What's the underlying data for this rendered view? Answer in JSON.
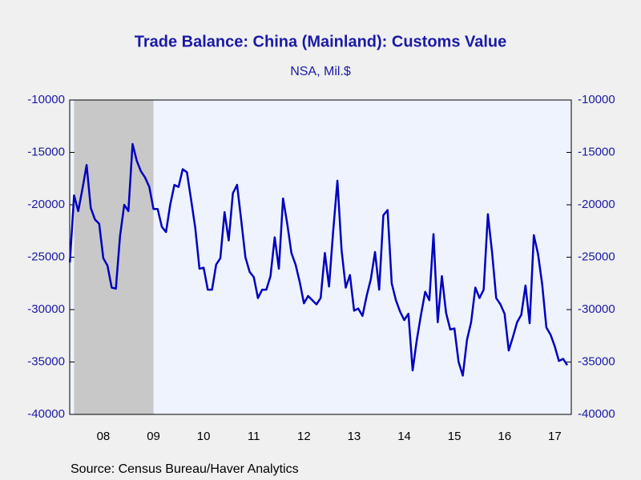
{
  "chart_data": {
    "type": "line",
    "title": "Trade Balance: China (Mainland): Customs Value",
    "subtitle": "NSA, Mil.$",
    "source": "Source:  Census Bureau/Haver Analytics",
    "shade": {
      "color": "#c8c8c8",
      "x": [
        2007.917,
        2009.5
      ]
    },
    "xlim": [
      2007.83,
      2017.83
    ],
    "xticks": [
      {
        "value": 2008.5,
        "label": "08"
      },
      {
        "value": 2009.5,
        "label": "09"
      },
      {
        "value": 2010.5,
        "label": "10"
      },
      {
        "value": 2011.5,
        "label": "11"
      },
      {
        "value": 2012.5,
        "label": "12"
      },
      {
        "value": 2013.5,
        "label": "13"
      },
      {
        "value": 2014.5,
        "label": "14"
      },
      {
        "value": 2015.5,
        "label": "15"
      },
      {
        "value": 2016.5,
        "label": "16"
      },
      {
        "value": 2017.5,
        "label": "17"
      }
    ],
    "ylim": [
      -40000,
      -10000
    ],
    "yticks": [
      -10000,
      -15000,
      -20000,
      -25000,
      -30000,
      -35000,
      -40000
    ],
    "x": [
      2007.833,
      2007.917,
      2008.0,
      2008.083,
      2008.167,
      2008.25,
      2008.333,
      2008.417,
      2008.5,
      2008.583,
      2008.667,
      2008.75,
      2008.833,
      2008.917,
      2009.0,
      2009.083,
      2009.167,
      2009.25,
      2009.333,
      2009.417,
      2009.5,
      2009.583,
      2009.667,
      2009.75,
      2009.833,
      2009.917,
      2010.0,
      2010.083,
      2010.167,
      2010.25,
      2010.333,
      2010.417,
      2010.5,
      2010.583,
      2010.667,
      2010.75,
      2010.833,
      2010.917,
      2011.0,
      2011.083,
      2011.167,
      2011.25,
      2011.333,
      2011.417,
      2011.5,
      2011.583,
      2011.667,
      2011.75,
      2011.833,
      2011.917,
      2012.0,
      2012.083,
      2012.167,
      2012.25,
      2012.333,
      2012.417,
      2012.5,
      2012.583,
      2012.667,
      2012.75,
      2012.833,
      2012.917,
      2013.0,
      2013.083,
      2013.167,
      2013.25,
      2013.333,
      2013.417,
      2013.5,
      2013.583,
      2013.667,
      2013.75,
      2013.833,
      2013.917,
      2014.0,
      2014.083,
      2014.167,
      2014.25,
      2014.333,
      2014.417,
      2014.5,
      2014.583,
      2014.667,
      2014.75,
      2014.833,
      2014.917,
      2015.0,
      2015.083,
      2015.167,
      2015.25,
      2015.333,
      2015.417,
      2015.5,
      2015.583,
      2015.667,
      2015.75,
      2015.833,
      2015.917,
      2016.0,
      2016.083,
      2016.167,
      2016.25,
      2016.333,
      2016.417,
      2016.5,
      2016.583,
      2016.667,
      2016.75,
      2016.833,
      2016.917,
      2017.0,
      2017.083,
      2017.167,
      2017.25,
      2017.333,
      2017.417,
      2017.5,
      2017.583,
      2017.667,
      2017.75
    ],
    "series": [
      {
        "name": "Trade Balance",
        "color": "#0000c0",
        "values": [
          -25500,
          -19100,
          -20600,
          -18500,
          -16200,
          -20300,
          -21400,
          -21800,
          -25100,
          -25800,
          -27900,
          -28000,
          -23000,
          -20000,
          -20600,
          -14200,
          -15800,
          -16800,
          -17400,
          -18300,
          -20400,
          -20400,
          -22100,
          -22600,
          -20000,
          -18100,
          -18300,
          -16600,
          -16900,
          -19500,
          -22200,
          -26100,
          -26000,
          -28100,
          -28100,
          -25700,
          -25100,
          -20700,
          -23400,
          -18900,
          -18100,
          -21500,
          -25000,
          -26400,
          -26900,
          -28900,
          -28100,
          -28100,
          -26800,
          -23100,
          -26100,
          -19400,
          -21800,
          -24600,
          -25700,
          -27400,
          -29400,
          -28700,
          -29100,
          -29500,
          -28900,
          -24600,
          -27800,
          -22500,
          -17700,
          -24300,
          -27900,
          -26700,
          -30100,
          -29900,
          -30600,
          -28700,
          -27100,
          -24500,
          -28100,
          -21000,
          -20500,
          -27500,
          -29100,
          -30200,
          -31000,
          -30400,
          -35800,
          -32900,
          -30500,
          -28300,
          -29100,
          -22800,
          -31200,
          -26800,
          -30300,
          -31900,
          -31800,
          -35000,
          -36300,
          -32900,
          -31200,
          -27900,
          -28900,
          -28100,
          -20900,
          -24500,
          -28900,
          -29500,
          -30400,
          -33900,
          -32600,
          -31200,
          -30500,
          -27700,
          -31300,
          -22900,
          -24700,
          -27600,
          -31700,
          -32400,
          -33500,
          -34900,
          -34700,
          -35300
        ]
      }
    ]
  }
}
